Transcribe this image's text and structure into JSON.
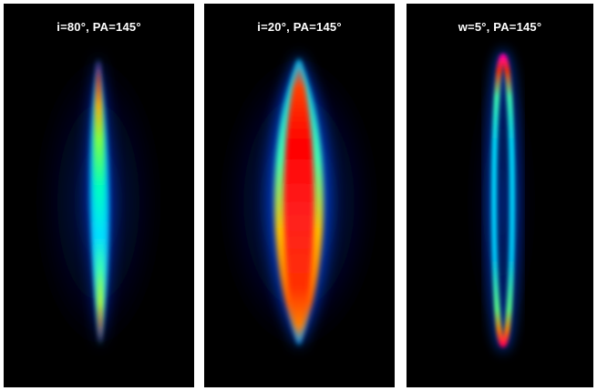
{
  "figure": {
    "panels": [
      {
        "title": "i=80°, PA=145°"
      },
      {
        "title": "i=20°, PA=145°"
      },
      {
        "title": "w=5°, PA=145°"
      }
    ],
    "colormap": [
      "#000080",
      "#0000ff",
      "#00a0ff",
      "#00ffff",
      "#30ffa0",
      "#a0ff30",
      "#ffff00",
      "#ff8000",
      "#ff0000",
      "#c00060"
    ]
  }
}
